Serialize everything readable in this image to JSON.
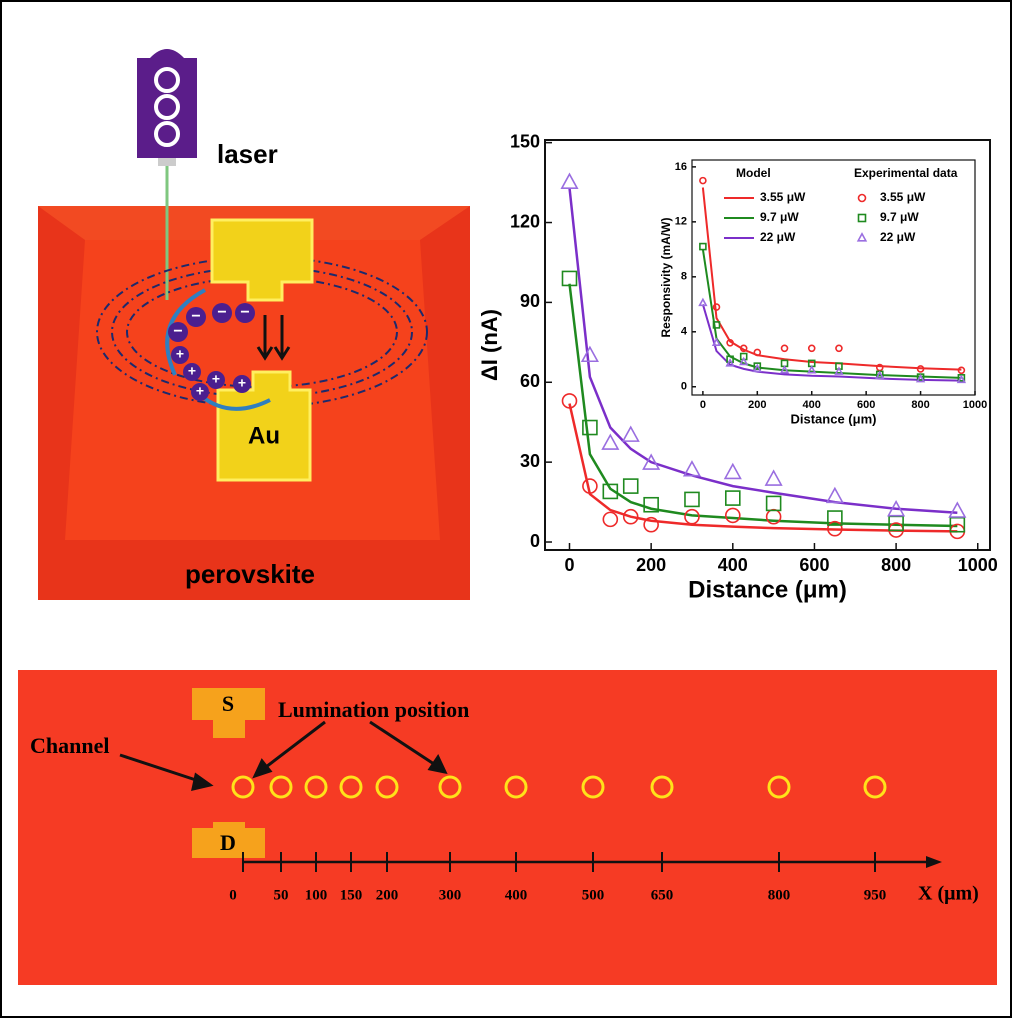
{
  "chart_data": [
    {
      "type": "line",
      "y_label": "ΔI (nA)",
      "x_label": "Distance (μm)",
      "x": [
        0,
        50,
        100,
        150,
        200,
        300,
        400,
        500,
        650,
        800,
        950
      ],
      "xlim": [
        -60,
        1030
      ],
      "ylim": [
        -3,
        151
      ],
      "xticks": [
        0,
        200,
        400,
        600,
        800,
        1000
      ],
      "yticks": [
        0,
        30,
        60,
        90,
        120,
        150
      ],
      "series": [
        {
          "color": "#ee2a2a",
          "marker": "none",
          "values": [
            52,
            18,
            12,
            9.5,
            8,
            6.5,
            5.8,
            5.2,
            4.7,
            4.3,
            4
          ]
        },
        {
          "color": "#1f8a1f",
          "marker": "none",
          "values": [
            97,
            33,
            20,
            15,
            12.5,
            10,
            9,
            8,
            7,
            6.5,
            6
          ]
        },
        {
          "color": "#7b2fc9",
          "marker": "none",
          "values": [
            133,
            62,
            43,
            35,
            30,
            25,
            21,
            18.5,
            15,
            12.5,
            11
          ]
        },
        {
          "color": "#ee2a2a",
          "marker": "circle",
          "values": [
            53,
            21,
            8.5,
            9.5,
            6.5,
            9.5,
            10,
            9.5,
            5,
            4.5,
            4
          ]
        },
        {
          "color": "#1f8a1f",
          "marker": "square",
          "values": [
            99,
            43,
            19,
            21,
            14,
            16,
            16.5,
            14.5,
            9,
            7,
            6.5
          ]
        },
        {
          "color": "#9a6ee0",
          "marker": "triangle",
          "values": [
            135,
            70,
            37,
            40,
            29.5,
            27,
            26,
            23.5,
            17,
            12,
            11.5
          ]
        }
      ]
    },
    {
      "type": "line",
      "y_label": "Responsivity (mA/W)",
      "x_label": "Distance (μm)",
      "legend_titles": [
        "Model",
        "Experimental data"
      ],
      "x": [
        0,
        50,
        100,
        150,
        200,
        300,
        400,
        500,
        650,
        800,
        950
      ],
      "xlim": [
        -40,
        1000
      ],
      "ylim": [
        -0.6,
        16.5
      ],
      "xticks": [
        0,
        200,
        400,
        600,
        800,
        1000
      ],
      "yticks": [
        0,
        4,
        8,
        12,
        16
      ],
      "series": [
        {
          "name": "3.55 μW",
          "color": "#ee2a2a",
          "marker": "none",
          "values": [
            14.5,
            5,
            3.3,
            2.7,
            2.3,
            2,
            1.8,
            1.7,
            1.5,
            1.35,
            1.25
          ]
        },
        {
          "name": "9.7 μW",
          "color": "#1f8a1f",
          "marker": "none",
          "values": [
            10,
            3.5,
            2.2,
            1.7,
            1.4,
            1.2,
            1.1,
            1,
            0.85,
            0.75,
            0.65
          ]
        },
        {
          "name": "22 μW",
          "color": "#7b2fc9",
          "marker": "none",
          "values": [
            6,
            2.6,
            1.6,
            1.3,
            1.1,
            0.9,
            0.8,
            0.75,
            0.6,
            0.5,
            0.45
          ]
        },
        {
          "name": "3.55 μW",
          "color": "#ee2a2a",
          "marker": "circle",
          "values": [
            15,
            5.8,
            3.2,
            2.8,
            2.5,
            2.8,
            2.8,
            2.8,
            1.4,
            1.3,
            1.2
          ]
        },
        {
          "name": "9.7 μW",
          "color": "#1f8a1f",
          "marker": "square",
          "values": [
            10.2,
            4.5,
            2,
            2.2,
            1.5,
            1.7,
            1.7,
            1.5,
            0.9,
            0.7,
            0.65
          ]
        },
        {
          "name": "22 μW",
          "color": "#9a6ee0",
          "marker": "triangle",
          "values": [
            6.1,
            3.2,
            1.7,
            1.8,
            1.3,
            1.2,
            1.2,
            1.1,
            0.8,
            0.55,
            0.5
          ]
        }
      ]
    }
  ],
  "device": {
    "laser": "laser",
    "electrode": "Au",
    "substrate": "perovskite",
    "minus": "−",
    "plus": "+"
  },
  "bottom_panel": {
    "source": "S",
    "drain": "D",
    "channel": "Channel",
    "lumination": "Lumination position",
    "positions": [
      0,
      50,
      100,
      150,
      200,
      300,
      400,
      500,
      650,
      800,
      950
    ],
    "axis_label": "X (μm)"
  }
}
